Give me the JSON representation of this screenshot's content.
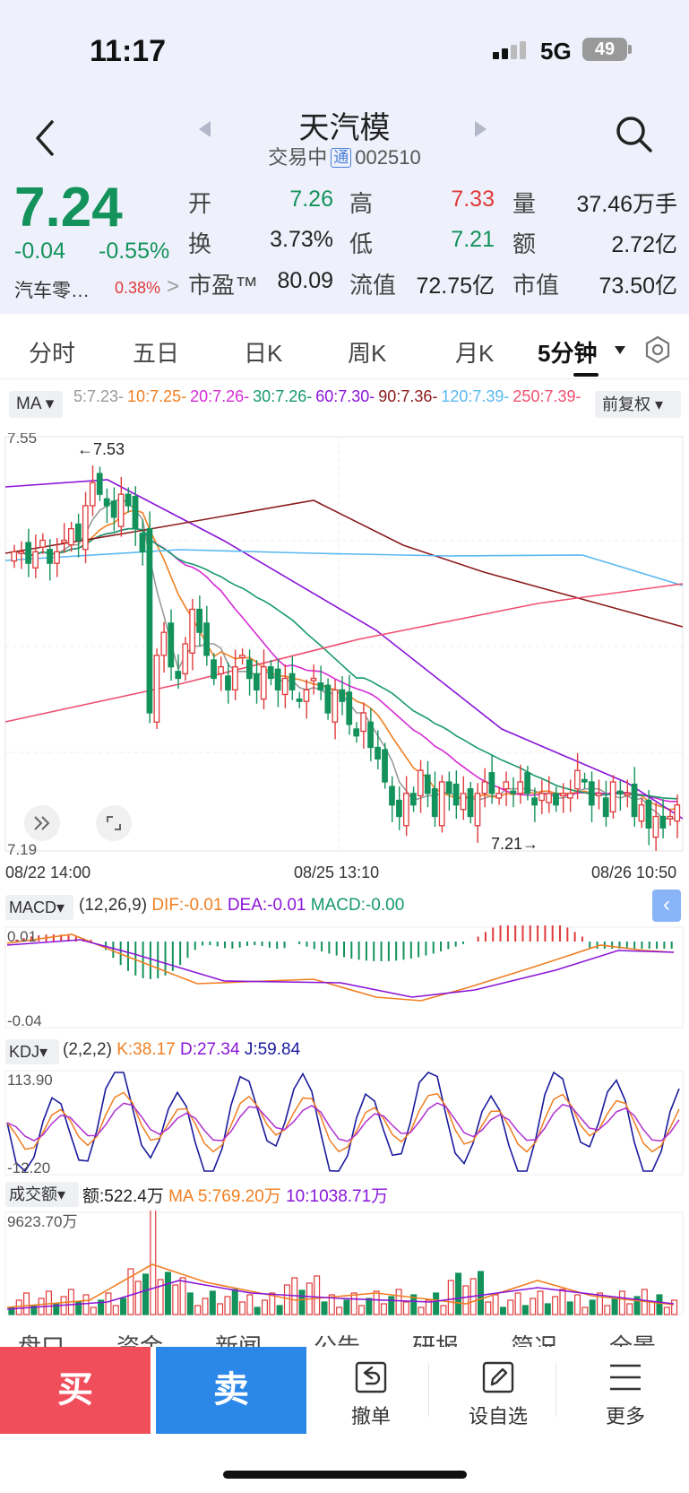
{
  "status": {
    "time": "11:17",
    "network": "5G",
    "battery": "49"
  },
  "header": {
    "name": "天汽模",
    "status": "交易中",
    "tong": "通",
    "code": "002510"
  },
  "quote": {
    "price": "7.24",
    "change": "-0.04",
    "change_pct": "-0.55%",
    "sector": "汽车零…",
    "sector_pct": "0.38%",
    "sector_arrow": ">",
    "rows": [
      [
        {
          "l": "开",
          "v": "7.26",
          "c": "green"
        },
        {
          "l": "高",
          "v": "7.33",
          "c": "red"
        },
        {
          "l": "量",
          "v": "37.46万手",
          "c": ""
        }
      ],
      [
        {
          "l": "换",
          "v": "3.73%",
          "c": ""
        },
        {
          "l": "低",
          "v": "7.21",
          "c": "green"
        },
        {
          "l": "额",
          "v": "2.72亿",
          "c": ""
        }
      ],
      [
        {
          "l": "市盈™",
          "v": "80.09",
          "c": ""
        },
        {
          "l": "流值",
          "v": "72.75亿",
          "c": ""
        },
        {
          "l": "市值",
          "v": "73.50亿",
          "c": ""
        }
      ]
    ]
  },
  "tabs": [
    "分时",
    "五日",
    "日K",
    "周K",
    "月K",
    "5分钟"
  ],
  "ma_legend": {
    "selector": "MA",
    "items": [
      {
        "text": "5:7.23-",
        "color": "#999999"
      },
      {
        "text": "10:7.25-",
        "color": "#f07f22"
      },
      {
        "text": "20:7.26-",
        "color": "#d52bd5"
      },
      {
        "text": "30:7.26-",
        "color": "#16996a"
      },
      {
        "text": "60:7.30-",
        "color": "#8a15d8"
      },
      {
        "text": "90:7.36-",
        "color": "#8b1a1a"
      },
      {
        "text": "120:7.39-",
        "color": "#59b8f0"
      },
      {
        "text": "250:7.39-",
        "color": "#f05070"
      }
    ],
    "adjust": "前复权"
  },
  "chart_data": [
    {
      "type": "candlestick",
      "ylim": [
        7.19,
        7.55
      ],
      "y_top_label": "7.55",
      "y_bottom_label": "7.19",
      "max_label": "←7.53",
      "min_label": "7.21→",
      "x_labels": [
        "08/22 14:00",
        "08/25 13:10",
        "08/26 10:50"
      ],
      "colors": {
        "up": "#e03a3a",
        "down": "#13925b"
      }
    },
    {
      "type": "bar+line",
      "name": "MACD",
      "params": "(12,26,9)",
      "dif_label": "DIF:-0.01",
      "dea_label": "DEA:-0.01",
      "macd_label": "MACD:-0.00",
      "y_top_label": "0.01",
      "y_bottom_label": "-0.04"
    },
    {
      "type": "line",
      "name": "KDJ",
      "params": "(2,2,2)",
      "k_label": "K:38.17",
      "d_label": "D:27.34",
      "j_label": "J:59.84",
      "y_top_label": "113.90",
      "y_bottom_label": "-12.20"
    },
    {
      "type": "bar+line",
      "name": "成交额",
      "amount_label": "额:522.4万",
      "ma5_label": "MA 5:769.20万",
      "ma10_label": "10:1038.71万",
      "y_top_label": "9623.70万"
    }
  ],
  "bottom_tabs": [
    "盘口",
    "资金",
    "新闻",
    "公告",
    "研报",
    "简况",
    "全景"
  ],
  "actions": {
    "buy": "买",
    "sell": "卖",
    "cancel": "撤单",
    "watch": "设自选",
    "more": "更多"
  }
}
